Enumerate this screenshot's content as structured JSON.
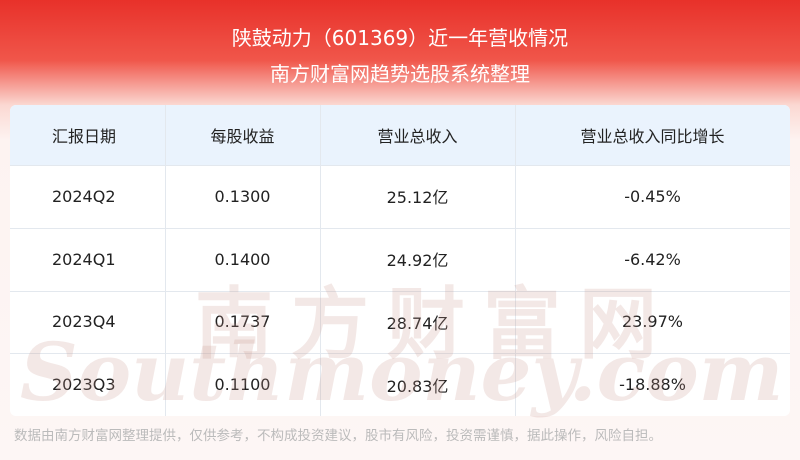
{
  "header": {
    "title": "陕鼓动力（601369）近一年营收情况",
    "subtitle": "南方财富网趋势选股系统整理"
  },
  "table": {
    "columns": [
      "汇报日期",
      "每股收益",
      "营业总收入",
      "营业总收入同比增长"
    ],
    "rows": [
      [
        "2024Q2",
        "0.1300",
        "25.12亿",
        "-0.45%"
      ],
      [
        "2024Q1",
        "0.1400",
        "24.92亿",
        "-6.42%"
      ],
      [
        "2023Q4",
        "0.1737",
        "28.74亿",
        "23.97%"
      ],
      [
        "2023Q3",
        "0.1100",
        "20.83亿",
        "-18.88%"
      ]
    ]
  },
  "watermark": {
    "cn": "南方财富网",
    "en": "Southmoney.com"
  },
  "footer": "数据由南方财富网整理提供，仅供参考，不构成投资建议，股市有风险，投资需谨慎，据此操作，风险自担。"
}
